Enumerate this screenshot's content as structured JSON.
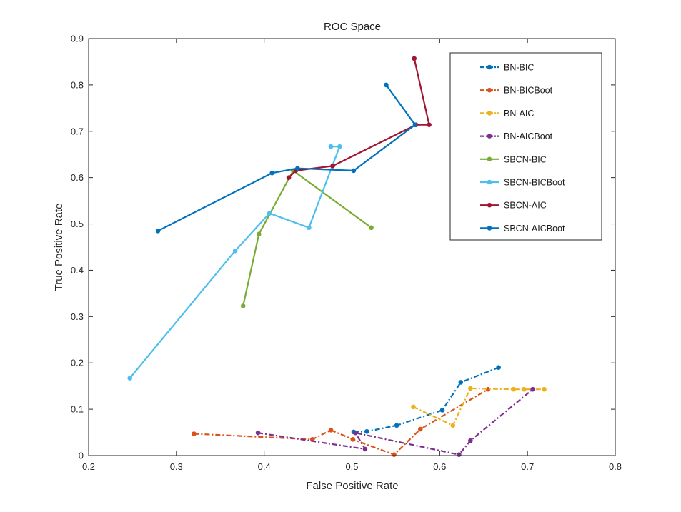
{
  "chart_data": {
    "type": "line",
    "title": "ROC Space",
    "xlabel": "False Positive Rate",
    "ylabel": "True Positive Rate",
    "xlim": [
      0.2,
      0.8
    ],
    "ylim": [
      0,
      0.9
    ],
    "xticks": [
      "0.2",
      "0.3",
      "0.4",
      "0.5",
      "0.6",
      "0.7",
      "0.8"
    ],
    "yticks": [
      "0",
      "0.1",
      "0.2",
      "0.3",
      "0.4",
      "0.5",
      "0.6",
      "0.7",
      "0.8",
      "0.9"
    ],
    "grid": false,
    "legend_position": "top-right",
    "series": [
      {
        "name": "BN-BIC",
        "color": "#0072bd",
        "dash": "dashdot",
        "x": [
          0.502,
          0.517,
          0.551,
          0.603,
          0.624,
          0.667
        ],
        "y": [
          0.051,
          0.052,
          0.065,
          0.098,
          0.158,
          0.19
        ]
      },
      {
        "name": "BN-BICBoot",
        "color": "#d95319",
        "dash": "dashdot",
        "x": [
          0.32,
          0.455,
          0.476,
          0.501,
          0.548,
          0.578,
          0.655
        ],
        "y": [
          0.047,
          0.035,
          0.055,
          0.035,
          0.002,
          0.057,
          0.143
        ]
      },
      {
        "name": "BN-AIC",
        "color": "#edb120",
        "dash": "dashdot",
        "x": [
          0.57,
          0.615,
          0.635,
          0.684,
          0.696,
          0.719
        ],
        "y": [
          0.105,
          0.065,
          0.145,
          0.143,
          0.143,
          0.143
        ]
      },
      {
        "name": "BN-AICBoot",
        "color": "#7e2f8e",
        "dash": "dashdot",
        "x": [
          0.393,
          0.515,
          0.504,
          0.622,
          0.635,
          0.706
        ],
        "y": [
          0.049,
          0.014,
          0.049,
          0.002,
          0.032,
          0.143
        ]
      },
      {
        "name": "SBCN-BIC",
        "color": "#77ac30",
        "dash": "solid",
        "x": [
          0.376,
          0.394,
          0.433,
          0.522
        ],
        "y": [
          0.323,
          0.478,
          0.615,
          0.492
        ]
      },
      {
        "name": "SBCN-BICBoot",
        "color": "#4dbeee",
        "dash": "solid",
        "x": [
          0.247,
          0.367,
          0.406,
          0.451,
          0.486,
          0.476
        ],
        "y": [
          0.167,
          0.442,
          0.523,
          0.492,
          0.667,
          0.667
        ]
      },
      {
        "name": "SBCN-AIC",
        "color": "#a2142f",
        "dash": "solid",
        "x": [
          0.428,
          0.436,
          0.478,
          0.573,
          0.588,
          0.571
        ],
        "y": [
          0.6,
          0.615,
          0.625,
          0.714,
          0.714,
          0.857
        ]
      },
      {
        "name": "SBCN-AICBoot",
        "color": "#0072bd",
        "dash": "solid",
        "x": [
          0.279,
          0.409,
          0.438,
          0.502,
          0.572,
          0.539
        ],
        "y": [
          0.485,
          0.61,
          0.62,
          0.615,
          0.714,
          0.8
        ]
      }
    ]
  }
}
